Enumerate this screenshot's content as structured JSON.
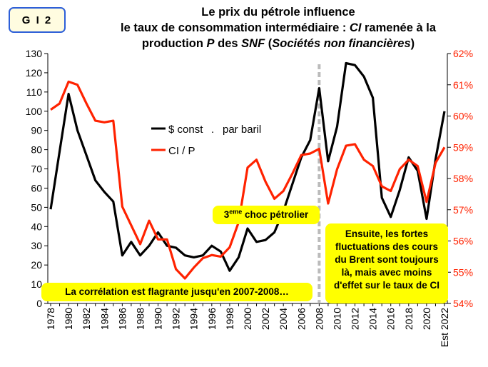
{
  "badge": "G I 2",
  "title": {
    "line1": "Le prix du pétrole influence",
    "line2_pre": "le taux de consommation intermédiaire : ",
    "line2_ci": "CI",
    "line2_post": " ramenée à la",
    "line3_pre": "production ",
    "line3_p": "P",
    "line3_mid": " des ",
    "line3_snf": "SNF",
    "line3_open": " (",
    "line3_paren": "Sociétés non financières",
    "line3_close": ")"
  },
  "annotations": {
    "shock_num": "3",
    "shock_sup": "eme",
    "shock_rest": " choc pétrolier",
    "correlation": "La corrélation est flagrante jusqu'en 2007-2008…",
    "ensuite": [
      "Ensuite, les fortes",
      "fluctuations des cours",
      "du Brent sont toujours",
      "là, mais avec moins",
      "d'effet sur le taux de CI"
    ]
  },
  "colors": {
    "oil": "#000000",
    "ci": "#ff2200",
    "callout": "#ffff00",
    "badge_border": "#2d5fd8",
    "marker": "#bbbbbb"
  },
  "chart_data": {
    "type": "line",
    "title": "Le prix du pétrole influence le taux de consommation intermédiaire : CI ramenée à la production P des SNF (Sociétés non financières)",
    "x": [
      1978,
      1979,
      1980,
      1981,
      1982,
      1983,
      1984,
      1985,
      1986,
      1987,
      1988,
      1989,
      1990,
      1991,
      1992,
      1993,
      1994,
      1995,
      1996,
      1997,
      1998,
      1999,
      2000,
      2001,
      2002,
      2003,
      2004,
      2005,
      2006,
      2007,
      2008,
      2009,
      2010,
      2011,
      2012,
      2013,
      2014,
      2015,
      2016,
      2017,
      2018,
      2019,
      2020,
      2021,
      2022
    ],
    "x_tick_labels": [
      "1978",
      "1980",
      "1982",
      "1984",
      "1986",
      "1988",
      "1990",
      "1992",
      "1994",
      "1996",
      "1998",
      "2000",
      "2002",
      "2004",
      "2006",
      "2008",
      "2010",
      "2012",
      "2014",
      "2016",
      "2018",
      "2020",
      "Est 2022"
    ],
    "series": [
      {
        "name": "$ const . par baril",
        "axis": "left",
        "color": "#000000",
        "values": [
          49,
          79,
          109,
          90,
          77,
          64,
          58,
          53,
          25,
          32,
          25,
          30,
          37,
          30,
          29,
          25,
          24,
          25,
          30,
          27,
          17,
          24,
          39,
          32,
          33,
          37,
          48,
          62,
          76,
          85,
          112,
          74,
          92,
          125,
          124,
          118,
          107,
          55,
          45,
          59,
          76,
          69,
          44,
          75,
          100
        ]
      },
      {
        "name": "CI / P",
        "axis": "right",
        "unit": "%",
        "color": "#ff2200",
        "values": [
          60.2,
          60.4,
          61.1,
          61.0,
          60.4,
          59.85,
          59.8,
          59.85,
          57.1,
          56.5,
          55.9,
          56.65,
          56.05,
          56.05,
          55.1,
          54.8,
          55.15,
          55.45,
          55.55,
          55.5,
          55.8,
          56.6,
          58.35,
          58.6,
          57.9,
          57.35,
          57.6,
          58.15,
          58.75,
          58.8,
          58.95,
          57.2,
          58.3,
          59.05,
          59.1,
          58.6,
          58.4,
          57.75,
          57.6,
          58.3,
          58.6,
          58.4,
          57.25,
          58.5,
          59.0
        ]
      }
    ],
    "y_left": {
      "min": 0,
      "max": 130,
      "ticks": [
        "0",
        "10",
        "20",
        "30",
        "40",
        "50",
        "60",
        "70",
        "80",
        "90",
        "100",
        "110",
        "120",
        "130"
      ]
    },
    "y_right": {
      "min": 54,
      "max": 62,
      "ticks": [
        "54%",
        "55%",
        "56%",
        "57%",
        "58%",
        "59%",
        "60%",
        "61%",
        "62%"
      ]
    },
    "marker_year": 2008,
    "legend": [
      {
        "label_a": "$ const",
        "label_b": ".",
        "label_c": "par baril",
        "color": "#000000"
      },
      {
        "label": "CI / P",
        "color": "#ff2200"
      }
    ],
    "legend_position": "center-left",
    "grid": false
  }
}
